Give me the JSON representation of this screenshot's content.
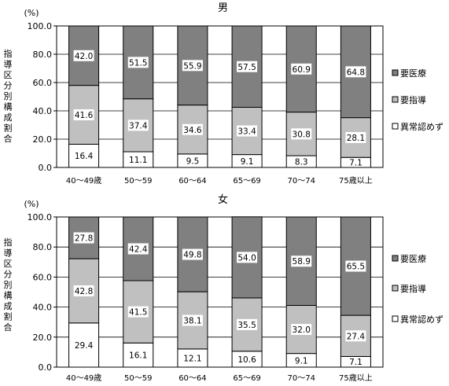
{
  "colors": {
    "medical": "#808080",
    "guidance": "#c0c0c0",
    "normal": "#ffffff",
    "border": "#000000"
  },
  "chart_data": [
    {
      "type": "bar",
      "stacked": true,
      "percent": true,
      "title": "男",
      "unit_label": "(%)",
      "ylabel": "指導区分別構成割合",
      "ylim": [
        0,
        100
      ],
      "yticks": [
        "0.0",
        "20.0",
        "40.0",
        "60.0",
        "80.0",
        "100.0"
      ],
      "grid": true,
      "legend": "right",
      "categories": [
        "40～49歳",
        "50～59",
        "60～64",
        "65～69",
        "70～74",
        "75歳以上"
      ],
      "series": [
        {
          "name": "異常認めず",
          "color": "#ffffff",
          "values": [
            16.4,
            11.1,
            9.5,
            9.1,
            8.3,
            7.1
          ],
          "labels": [
            "16.4",
            "11.1",
            "9.5",
            "9.1",
            "8.3",
            "7.1"
          ]
        },
        {
          "name": "要指導",
          "color": "#c0c0c0",
          "values": [
            41.6,
            37.4,
            34.6,
            33.4,
            30.8,
            28.1
          ],
          "labels": [
            "41.6",
            "37.4",
            "34.6",
            "33.4",
            "30.8",
            "28.1"
          ]
        },
        {
          "name": "要医療",
          "color": "#808080",
          "values": [
            42.0,
            51.5,
            55.9,
            57.5,
            60.9,
            64.8
          ],
          "labels": [
            "42.0",
            "51.5",
            "55.9",
            "57.5",
            "60.9",
            "64.8"
          ]
        }
      ]
    },
    {
      "type": "bar",
      "stacked": true,
      "percent": true,
      "title": "女",
      "unit_label": "(%)",
      "ylabel": "指導区分別構成割合",
      "ylim": [
        0,
        100
      ],
      "yticks": [
        "0.0",
        "20.0",
        "40.0",
        "60.0",
        "80.0",
        "100.0"
      ],
      "grid": true,
      "legend": "right",
      "categories": [
        "40～49歳",
        "50～59",
        "60～64",
        "65～69",
        "70～74",
        "75歳以上"
      ],
      "series": [
        {
          "name": "異常認めず",
          "color": "#ffffff",
          "values": [
            29.4,
            16.1,
            12.1,
            10.6,
            9.1,
            7.1
          ],
          "labels": [
            "29.4",
            "16.1",
            "12.1",
            "10.6",
            "9.1",
            "7.1"
          ]
        },
        {
          "name": "要指導",
          "color": "#c0c0c0",
          "values": [
            42.8,
            41.5,
            38.1,
            35.5,
            32.0,
            27.4
          ],
          "labels": [
            "42.8",
            "41.5",
            "38.1",
            "35.5",
            "32.0",
            "27.4"
          ]
        },
        {
          "name": "要医療",
          "color": "#808080",
          "values": [
            27.8,
            42.4,
            49.8,
            54.0,
            58.9,
            65.5
          ],
          "labels": [
            "27.8",
            "42.4",
            "49.8",
            "54.0",
            "58.9",
            "65.5"
          ]
        }
      ]
    }
  ]
}
